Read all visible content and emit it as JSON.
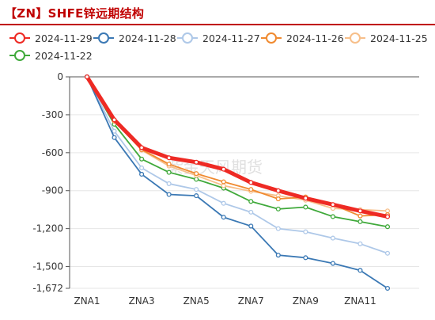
{
  "title": "【ZN】SHFE锌远期结构",
  "watermark": "紫金天风期货",
  "colors": {
    "title": "#c00000",
    "axis": "#555555",
    "grid": "#e6e6e6"
  },
  "chart_data": {
    "type": "line",
    "categories": [
      "ZNA1",
      "ZNA2",
      "ZNA3",
      "ZNA4",
      "ZNA5",
      "ZNA6",
      "ZNA7",
      "ZNA8",
      "ZNA9",
      "ZNA10",
      "ZNA11",
      "ZNA12"
    ],
    "xtick_labels": [
      "ZNA1",
      "ZNA3",
      "ZNA5",
      "ZNA7",
      "ZNA9",
      "ZNA11"
    ],
    "ylim": [
      -1672,
      0
    ],
    "yticks": [
      0,
      -300,
      -600,
      -900,
      -1200,
      -1500,
      -1672
    ],
    "ytick_labels": [
      "0",
      "-300",
      "-600",
      "-900",
      "-1,200",
      "-1,500",
      "-1,672"
    ],
    "grid": "horizontal",
    "legend_position": "top",
    "series": [
      {
        "name": "2024-11-29",
        "color": "#ee2a24",
        "thick": true,
        "values": [
          0,
          -340,
          -560,
          -640,
          -675,
          -730,
          -835,
          -900,
          -960,
          -1010,
          -1060,
          -1105
        ]
      },
      {
        "name": "2024-11-28",
        "color": "#3a78b4",
        "values": [
          0,
          -480,
          -770,
          -930,
          -940,
          -1110,
          -1180,
          -1410,
          -1430,
          -1475,
          -1530,
          -1672
        ]
      },
      {
        "name": "2024-11-27",
        "color": "#aec8e8",
        "values": [
          0,
          -430,
          -720,
          -845,
          -890,
          -1000,
          -1070,
          -1200,
          -1225,
          -1275,
          -1320,
          -1395
        ]
      },
      {
        "name": "2024-11-26",
        "color": "#f08a30",
        "values": [
          0,
          -350,
          -575,
          -690,
          -765,
          -830,
          -890,
          -965,
          -950,
          -1010,
          -1100,
          -1090
        ]
      },
      {
        "name": "2024-11-25",
        "color": "#f7bf8a",
        "values": [
          0,
          -345,
          -580,
          -705,
          -780,
          -860,
          -905,
          -940,
          -975,
          -1040,
          -1050,
          -1060
        ]
      },
      {
        "name": "2024-11-22",
        "color": "#3fa93a",
        "values": [
          0,
          -375,
          -650,
          -755,
          -810,
          -880,
          -985,
          -1045,
          -1030,
          -1105,
          -1145,
          -1185
        ]
      }
    ]
  }
}
